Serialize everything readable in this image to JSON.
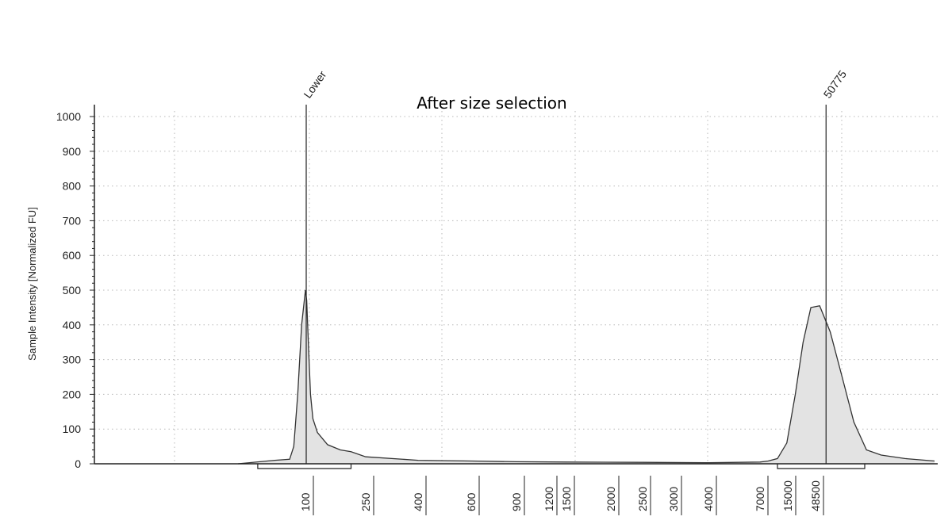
{
  "chart_data": {
    "type": "area",
    "title": "After size selection",
    "xlabel": "",
    "ylabel": "Sample Intensity [Normalized FU]",
    "ylim": [
      0,
      1000
    ],
    "y_ticks": [
      0,
      100,
      200,
      300,
      400,
      500,
      600,
      700,
      800,
      900,
      1000
    ],
    "x_tick_labels": [
      "100",
      "250",
      "400",
      "600",
      "900",
      "1200",
      "1500",
      "2000",
      "2500",
      "3000",
      "4000",
      "7000",
      "15000",
      "48500"
    ],
    "grid": true,
    "peaks": [
      {
        "label": "Lower",
        "x": 100
      },
      {
        "label": "50775",
        "x": 50775
      }
    ],
    "regions": [
      {
        "from": 90,
        "to": 200
      },
      {
        "from": 15000,
        "to": 100000
      }
    ],
    "series": [
      {
        "values": [
          [
            70,
            0
          ],
          [
            85,
            10
          ],
          [
            92,
            13
          ],
          [
            94,
            50
          ],
          [
            96,
            200
          ],
          [
            98,
            400
          ],
          [
            100,
            500
          ],
          [
            102,
            470
          ],
          [
            105,
            330
          ],
          [
            108,
            200
          ],
          [
            112,
            130
          ],
          [
            120,
            90
          ],
          [
            140,
            55
          ],
          [
            170,
            40
          ],
          [
            200,
            35
          ],
          [
            250,
            20
          ],
          [
            400,
            10
          ],
          [
            600,
            8
          ],
          [
            900,
            6
          ],
          [
            1500,
            5
          ],
          [
            2500,
            4
          ],
          [
            4000,
            3
          ],
          [
            7000,
            5
          ],
          [
            10000,
            8
          ],
          [
            15000,
            15
          ],
          [
            20000,
            60
          ],
          [
            26000,
            200
          ],
          [
            33000,
            350
          ],
          [
            42000,
            450
          ],
          [
            50775,
            455
          ],
          [
            57000,
            380
          ],
          [
            65000,
            250
          ],
          [
            74000,
            120
          ],
          [
            85000,
            40
          ],
          [
            100000,
            25
          ],
          [
            130000,
            15
          ],
          [
            180000,
            8
          ]
        ]
      }
    ]
  }
}
